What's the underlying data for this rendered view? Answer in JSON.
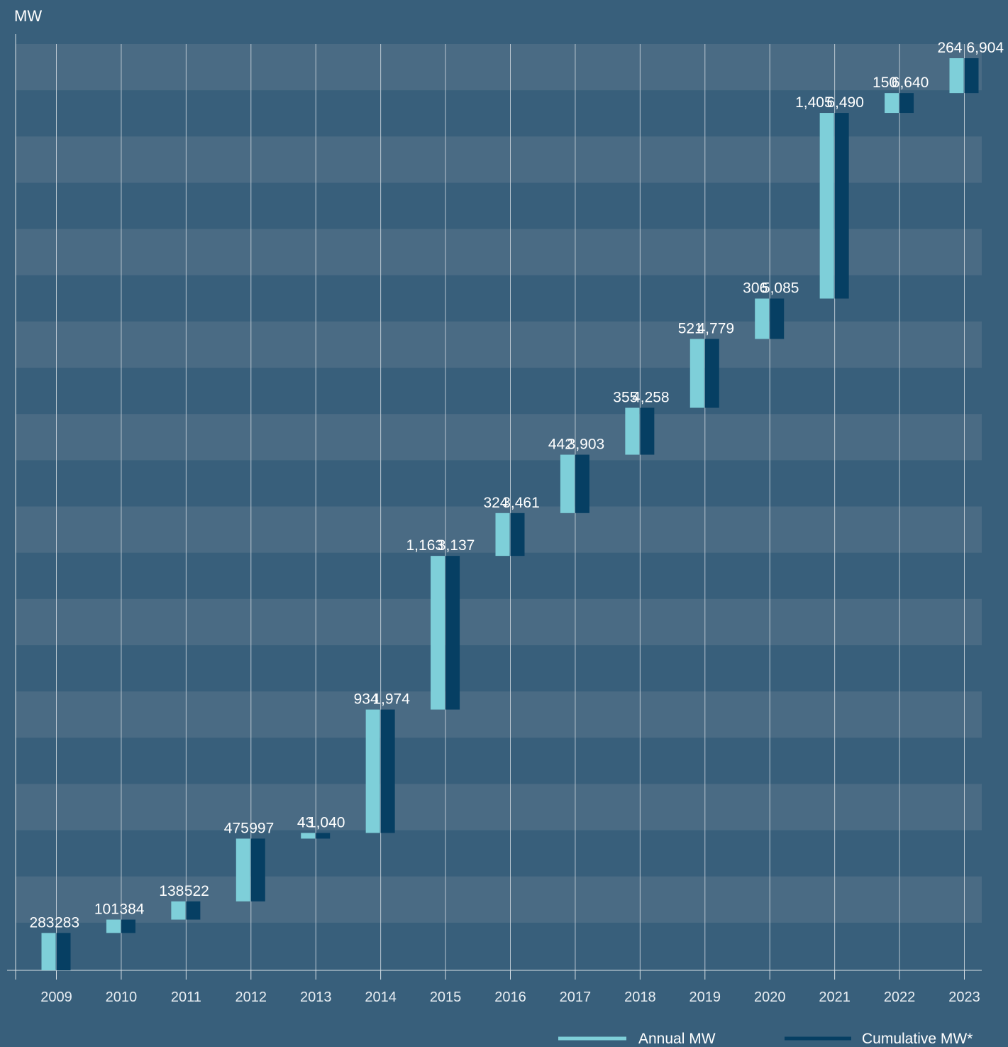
{
  "chart_data": {
    "type": "bar",
    "style": "waterfall",
    "ylabel": "MW",
    "categories": [
      "2009",
      "2010",
      "2011",
      "2012",
      "2013",
      "2014",
      "2015",
      "2016",
      "2017",
      "2018",
      "2019",
      "2020",
      "2021",
      "2022",
      "2023"
    ],
    "series": [
      {
        "name": "Annual MW",
        "values": [
          283,
          101,
          138,
          475,
          43,
          934,
          1163,
          324,
          442,
          355,
          521,
          306,
          1405,
          150,
          264
        ],
        "labels": [
          "283",
          "101",
          "138",
          "475",
          "43",
          "934",
          "1,163",
          "324",
          "442",
          "355",
          "521",
          "306",
          "1,405",
          "150",
          "264"
        ],
        "color": "#7ecfd9"
      },
      {
        "name": "Cumulative MW*",
        "values": [
          283,
          384,
          522,
          997,
          1040,
          1974,
          3137,
          3461,
          3903,
          4258,
          4779,
          5085,
          6490,
          6640,
          6904
        ],
        "labels": [
          "283",
          "384",
          "522",
          "997",
          "1,040",
          "1,974",
          "3,137",
          "3,461",
          "3,903",
          "4,258",
          "4,779",
          "5,085",
          "6,490",
          "6,640",
          "6,904"
        ],
        "color": "#063f63"
      }
    ],
    "grid": true,
    "legend": "bottom-right"
  },
  "colors": {
    "background": "#385f7b",
    "band_light": "#4a6b84",
    "annual": "#7ecfd9",
    "cumulative": "#063f63"
  }
}
